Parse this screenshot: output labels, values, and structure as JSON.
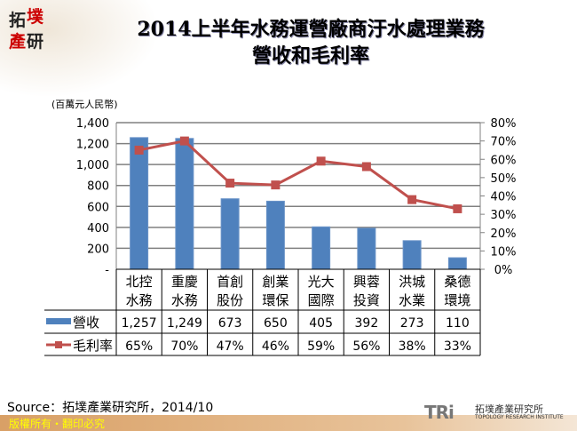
{
  "logo": {
    "chars": [
      "拓",
      "墣",
      "產",
      "研"
    ]
  },
  "title_line1": "2014上半年水務運營廠商汙水處理業務",
  "title_line2": "營收和毛利率",
  "footer": {
    "source": "Source：拓墣產業研究所，2014/10",
    "copyright": "版權所有・翻印必究",
    "brand": "TRi",
    "brand_cn": "拓墣產業研究所",
    "brand_en": "TOPOLOGY RESEARCH INSTITUTE"
  },
  "chart_data": {
    "type": "bar+line",
    "unit_label": "(百萬元人民幣)",
    "categories": [
      [
        "北控",
        "水務"
      ],
      [
        "重慶",
        "水務"
      ],
      [
        "首創",
        "股份"
      ],
      [
        "創業",
        "環保"
      ],
      [
        "光大",
        "國際"
      ],
      [
        "興蓉",
        "投資"
      ],
      [
        "洪城",
        "水業"
      ],
      [
        "桑德",
        "環境"
      ]
    ],
    "series": [
      {
        "name": "營收",
        "type": "bar",
        "axis": "left",
        "color": "#4f81bd",
        "values": [
          1257,
          1249,
          673,
          650,
          405,
          392,
          273,
          110
        ],
        "labels": [
          "1,257",
          "1,249",
          "673",
          "650",
          "405",
          "392",
          "273",
          "110"
        ]
      },
      {
        "name": "毛利率",
        "type": "line",
        "axis": "right",
        "color": "#c0504d",
        "values": [
          65,
          70,
          47,
          46,
          59,
          56,
          38,
          33
        ],
        "labels": [
          "65%",
          "70%",
          "47%",
          "46%",
          "59%",
          "56%",
          "38%",
          "33%"
        ]
      }
    ],
    "y_left": {
      "range": [
        0,
        1400
      ],
      "ticks": [
        "-",
        "200",
        "400",
        "600",
        "800",
        "1,000",
        "1,200",
        "1,400"
      ]
    },
    "y_right": {
      "range": [
        0,
        80
      ],
      "ticks": [
        "0%",
        "10%",
        "20%",
        "30%",
        "40%",
        "50%",
        "60%",
        "70%",
        "80%"
      ]
    },
    "grid": true,
    "legend": "data-table"
  }
}
